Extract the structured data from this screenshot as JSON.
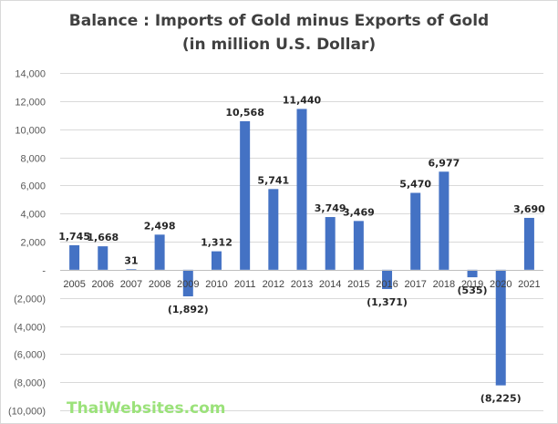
{
  "title_line1": "Balance : Imports of Gold minus Exports of Gold",
  "title_line2": "(in million U.S. Dollar)",
  "watermark": "ThaiWebsites.com",
  "colors": {
    "bar": "#4472c4",
    "gridline": "#d9d9d9",
    "axis": "#bfbfbf"
  },
  "chart_data": {
    "type": "bar",
    "title": "Balance : Imports of Gold minus Exports of Gold (in million U.S. Dollar)",
    "categories": [
      "2005",
      "2006",
      "2007",
      "2008",
      "2009",
      "2010",
      "2011",
      "2012",
      "2013",
      "2014",
      "2015",
      "2016",
      "2017",
      "2018",
      "2019",
      "2020",
      "2021"
    ],
    "values": [
      1745,
      1668,
      31,
      2498,
      -1892,
      1312,
      10568,
      5741,
      11440,
      3749,
      3469,
      -1371,
      5470,
      6977,
      -535,
      -8225,
      3690
    ],
    "data_labels": [
      "1,745",
      "1,668",
      "31",
      "2,498",
      "(1,892)",
      "1,312",
      "10,568",
      "5,741",
      "11,440",
      "3,749",
      "3,469",
      "(1,371)",
      "5,470",
      "6,977",
      "(535)",
      "(8,225)",
      "3,690"
    ],
    "yticks": [
      14000,
      12000,
      10000,
      8000,
      6000,
      4000,
      2000,
      0,
      -2000,
      -4000,
      -6000,
      -8000,
      -10000
    ],
    "ytick_labels": [
      "14,000",
      "12,000",
      "10,000",
      "8,000",
      "6,000",
      "4,000",
      "2,000",
      "-",
      "(2,000)",
      "(4,000)",
      "(6,000)",
      "(8,000)",
      "(10,000)"
    ],
    "ylim": [
      -10000,
      14000
    ],
    "grid": true,
    "xlabel": "",
    "ylabel": ""
  }
}
